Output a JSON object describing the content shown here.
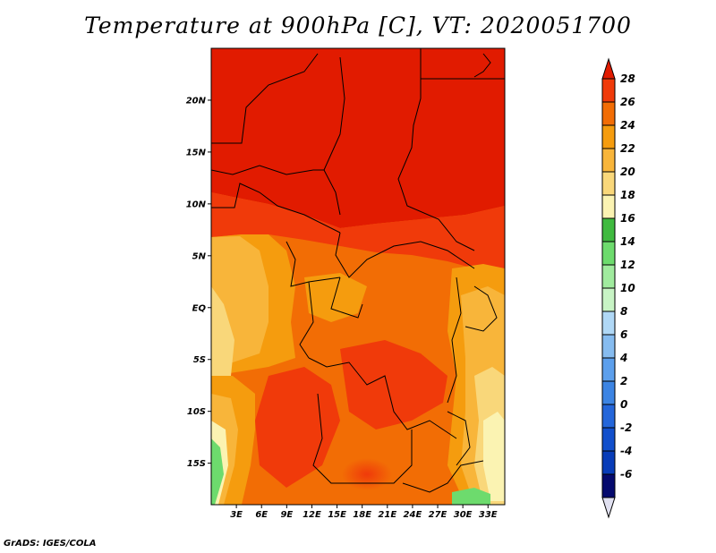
{
  "title": "Temperature at 900hPa [C], VT: 2020051700",
  "footer": "GrADS: IGES/COLA",
  "map": {
    "lat_labels": [
      "20N",
      "15N",
      "10N",
      "5N",
      "EQ",
      "5S",
      "10S",
      "15S"
    ],
    "lon_labels": [
      "3E",
      "6E",
      "9E",
      "12E",
      "15E",
      "18E",
      "21E",
      "24E",
      "27E",
      "30E",
      "33E"
    ],
    "lat_range": [
      -19,
      25
    ],
    "lon_range": [
      0,
      35
    ]
  },
  "colorbar": {
    "labels": [
      "28",
      "26",
      "24",
      "22",
      "20",
      "18",
      "16",
      "14",
      "12",
      "10",
      "8",
      "6",
      "4",
      "2",
      "0",
      "-2",
      "-4",
      "-6"
    ],
    "colors": [
      "#e11b00",
      "#f03a0a",
      "#f26d05",
      "#f59c0e",
      "#f8b53a",
      "#f9d77a",
      "#fbf3b2",
      "#3fba3f",
      "#6ddb6d",
      "#a0eb9e",
      "#c8f4c5",
      "#b0d8f6",
      "#86bcf0",
      "#5c9fec",
      "#3c84e3",
      "#2466da",
      "#114fcc",
      "#083cb8",
      "#050a6e"
    ],
    "bottom_arrow_color": "#e0e0f0"
  }
}
